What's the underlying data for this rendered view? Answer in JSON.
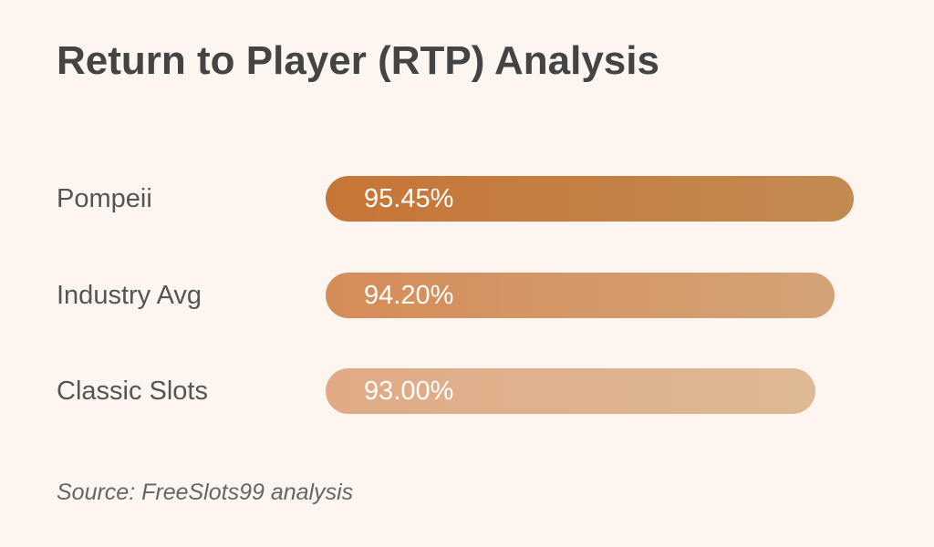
{
  "chart_data": {
    "type": "bar",
    "orientation": "horizontal",
    "title": "Return to Player (RTP) Analysis",
    "categories": [
      "Pompeii",
      "Industry Avg",
      "Classic Slots"
    ],
    "values": [
      95.45,
      94.2,
      93.0
    ],
    "value_labels": [
      "95.45%",
      "94.20%",
      "93.00%"
    ],
    "colors": [
      [
        "#c67536",
        "#c38a51"
      ],
      [
        "#d58c58",
        "#d3a377"
      ],
      [
        "#e0aa86",
        "#ddb994"
      ]
    ],
    "grid": false,
    "legend": "none"
  },
  "source": "Source: FreeSlots99 analysis"
}
